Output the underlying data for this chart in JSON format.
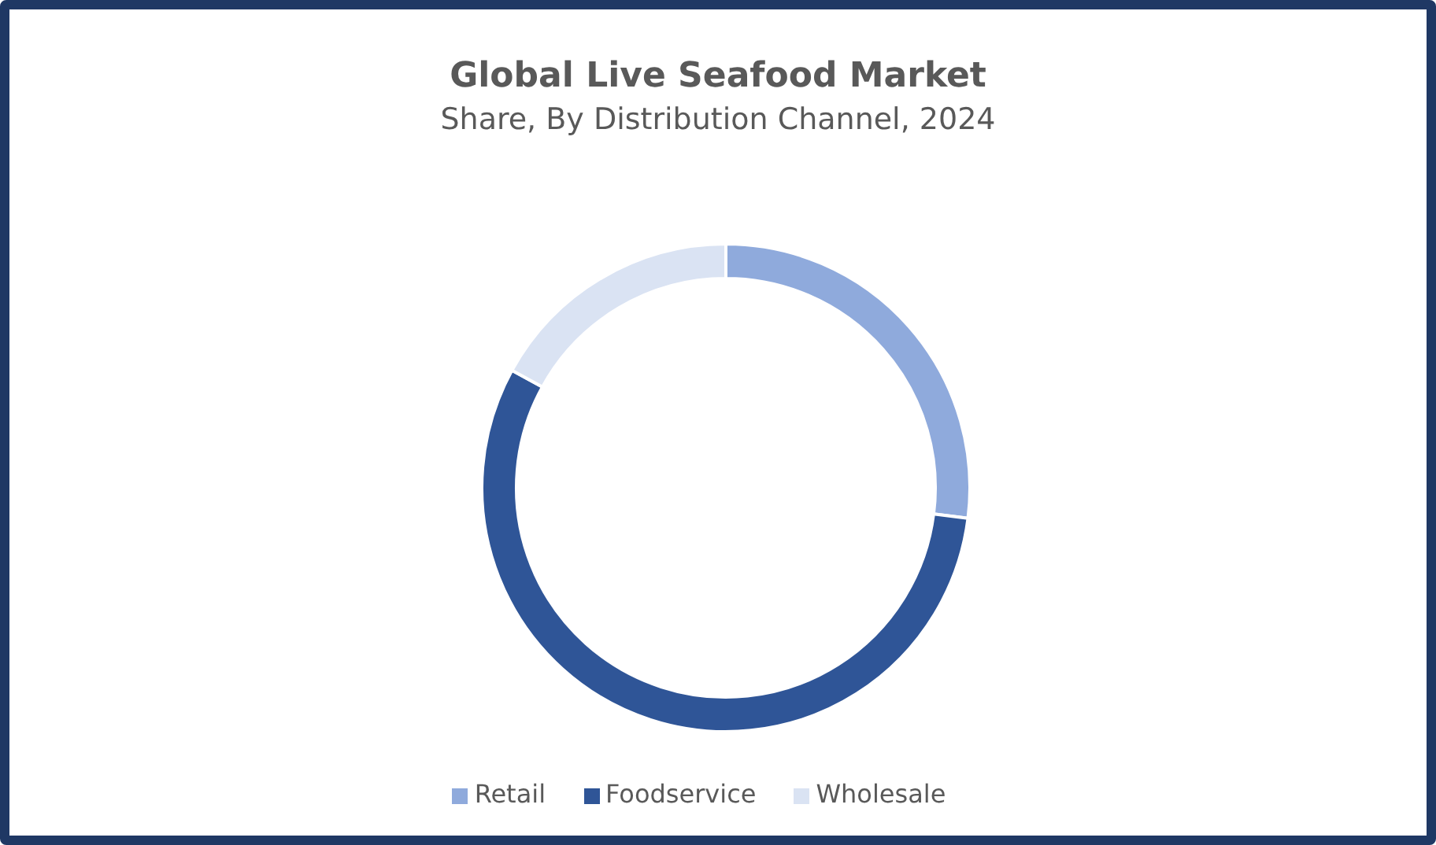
{
  "chart_data": {
    "type": "donut",
    "title": "Global Live Seafood Market",
    "subtitle": "Share, By Distribution Channel, 2024",
    "categories": [
      "Retail",
      "Foodservice",
      "Wholesale"
    ],
    "values": [
      27,
      56,
      17
    ],
    "colors": [
      "#8faadc",
      "#2f5597",
      "#dae3f3"
    ],
    "legend": "bottom"
  }
}
